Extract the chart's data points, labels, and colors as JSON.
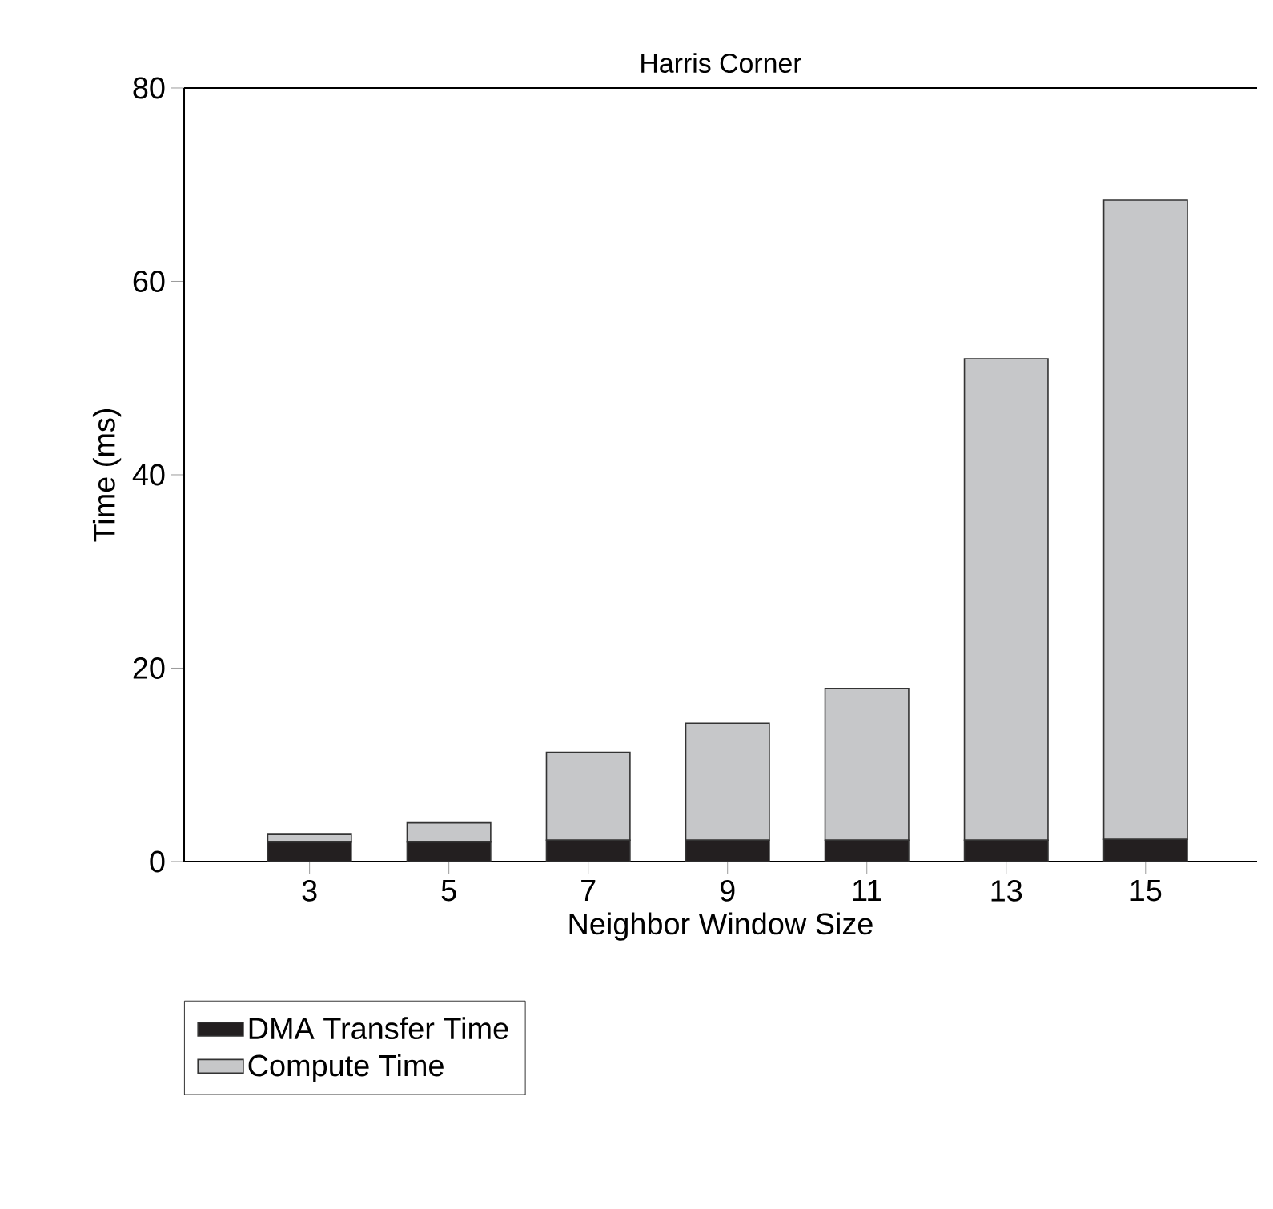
{
  "chart_data": {
    "type": "bar",
    "title": "Harris Corner",
    "xlabel": "Neighbor Window Size",
    "ylabel": "Time (ms)",
    "categories": [
      "3",
      "5",
      "7",
      "9",
      "11",
      "13",
      "15"
    ],
    "stacked": true,
    "series": [
      {
        "name": "DMA Transfer Time",
        "color": "#231f20",
        "values": [
          2.0,
          2.0,
          2.2,
          2.2,
          2.2,
          2.2,
          2.3
        ]
      },
      {
        "name": "Compute Time",
        "color": "#c6c7c9",
        "values": [
          0.8,
          2.0,
          9.1,
          12.1,
          15.7,
          49.8,
          66.1
        ]
      }
    ],
    "ylim": [
      0,
      80
    ],
    "yticks": [
      0,
      20,
      40,
      60,
      80
    ],
    "legend": "bottom left"
  }
}
